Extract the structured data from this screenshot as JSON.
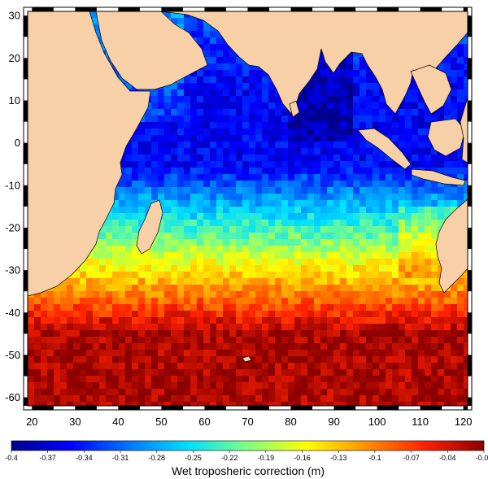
{
  "chart_data": {
    "type": "heatmap",
    "title": "",
    "x_ticks": [
      "20",
      "30",
      "40",
      "50",
      "60",
      "70",
      "80",
      "90",
      "100",
      "110",
      "120"
    ],
    "y_ticks": [
      "30",
      "20",
      "10",
      "0",
      "-10",
      "-20",
      "-30",
      "-40",
      "-50",
      "-60"
    ],
    "xlim": [
      19,
      121
    ],
    "ylim": [
      -62,
      31
    ],
    "colorbar": {
      "label": "Wet troposheric correction (m)",
      "ticks": [
        "-0.4",
        "-0.37",
        "-0.34",
        "-0.31",
        "-0.28",
        "-0.25",
        "-0.22",
        "-0.19",
        "-0.16",
        "-0.13",
        "-0.1",
        "-0.07",
        "-0.04",
        "-0.01"
      ],
      "range": [
        -0.4,
        -0.01
      ],
      "colors": [
        "#00008c",
        "#0000ff",
        "#0078ff",
        "#00e0ff",
        "#80ff80",
        "#ffff00",
        "#ff9000",
        "#ff2000",
        "#8c0000"
      ]
    },
    "colors": {
      "land": "#f8d0a8",
      "frame_dark": "#000000",
      "frame_light": "#ffffff"
    }
  }
}
